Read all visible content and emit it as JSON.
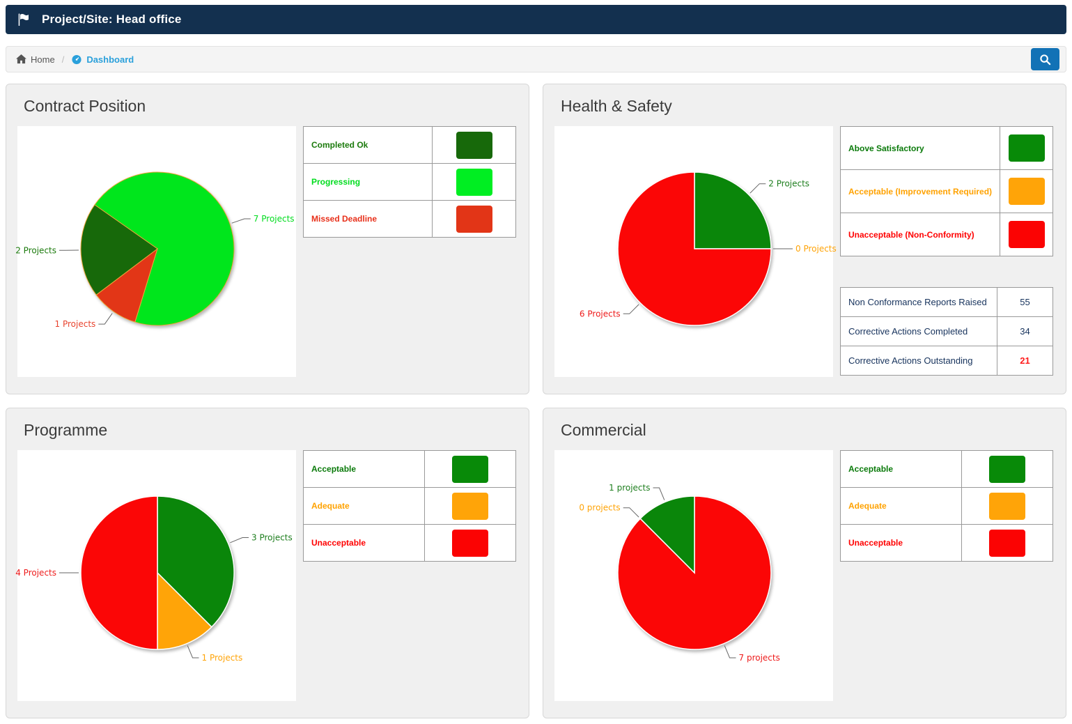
{
  "header": {
    "title": "Project/Site: Head office",
    "bg_color": "#13304F"
  },
  "breadcrumb": {
    "home_label": "Home",
    "separator": "/",
    "current_label": "Dashboard",
    "link_color": "#2AA0DB",
    "search_button_color": "#1272B6"
  },
  "panels": [
    {
      "title": "Contract Position",
      "legend": [
        {
          "label": "Completed Ok",
          "color": "#17690A",
          "text_color": "#1B7A0C"
        },
        {
          "label": "Progressing",
          "color": "#00EE22",
          "text_color": "#00DC1E"
        },
        {
          "label": "Missed Deadline",
          "color": "#E23517",
          "text_color": "#E8301A"
        }
      ],
      "chart": {
        "type": "pie",
        "start_angle": 305,
        "stroke": "#EFA63B",
        "stroke_width": 1,
        "slices": [
          {
            "label": "7 Projects",
            "value": 7,
            "color": "#00E61C",
            "text_color": "#00DC1E"
          },
          {
            "label": "1 Projects",
            "value": 1,
            "color": "#E23617",
            "text_color": "#E8432E"
          },
          {
            "label": "2 Projects",
            "value": 2,
            "color": "#17690A",
            "text_color": "#1B7A0C"
          }
        ]
      }
    },
    {
      "title": "Health & Safety",
      "legend": [
        {
          "label": "Above Satisfactory",
          "color": "#088A08",
          "text_color": "#0A7A0A"
        },
        {
          "label": "Acceptable (Improvement Required)",
          "color": "#FFA408",
          "text_color": "#FFA200"
        },
        {
          "label": "Unacceptable (Non-Conformity)",
          "color": "#FB0303",
          "text_color": "#FF0000"
        }
      ],
      "chart": {
        "type": "pie",
        "start_angle": 0,
        "stroke": "#FFFFFF",
        "stroke_width": 1.5,
        "slices": [
          {
            "label": "2 Projects",
            "value": 2,
            "color": "#0A860A",
            "text_color": "#1E7E1E"
          },
          {
            "label": "0 Projects",
            "value": 0,
            "color": "#FFA408",
            "text_color": "#FFA408"
          },
          {
            "label": "6 Projects",
            "value": 6,
            "color": "#FB0606",
            "text_color": "#EE1C1C"
          }
        ]
      },
      "stats": [
        {
          "label": "Non Conformance Reports Raised",
          "value": "55",
          "value_color": "#16325C"
        },
        {
          "label": "Corrective Actions Completed",
          "value": "34",
          "value_color": "#16325C"
        },
        {
          "label": "Corrective Actions Outstanding",
          "value": "21",
          "value_color": "#FF1A1A"
        }
      ]
    },
    {
      "title": "Programme",
      "legend": [
        {
          "label": "Acceptable",
          "color": "#088A08",
          "text_color": "#0A7A0A"
        },
        {
          "label": "Adequate",
          "color": "#FFA408",
          "text_color": "#FFA200"
        },
        {
          "label": "Unacceptable",
          "color": "#FB0303",
          "text_color": "#FF0000"
        }
      ],
      "chart": {
        "type": "pie",
        "start_angle": 0,
        "stroke": "#FFFFFF",
        "stroke_width": 1.5,
        "slices": [
          {
            "label": "3 Projects",
            "value": 3,
            "color": "#0A860A",
            "text_color": "#1E7E1E"
          },
          {
            "label": "1 Projects",
            "value": 1,
            "color": "#FFA408",
            "text_color": "#FFA408"
          },
          {
            "label": "4 Projects",
            "value": 4,
            "color": "#FB0606",
            "text_color": "#EE1C1C"
          }
        ]
      }
    },
    {
      "title": "Commercial",
      "legend": [
        {
          "label": "Acceptable",
          "color": "#088A08",
          "text_color": "#0A7A0A"
        },
        {
          "label": "Adequate",
          "color": "#FFA408",
          "text_color": "#FFA200"
        },
        {
          "label": "Unacceptable",
          "color": "#FB0303",
          "text_color": "#FF0000"
        }
      ],
      "chart": {
        "type": "pie",
        "start_angle": 0,
        "stroke": "#FFFFFF",
        "stroke_width": 1.5,
        "slices": [
          {
            "label": "7 projects",
            "value": 7,
            "color": "#FB0606",
            "text_color": "#EE1C1C"
          },
          {
            "label": "0 projects",
            "value": 0,
            "color": "#FFA408",
            "text_color": "#FFA408"
          },
          {
            "label": "1 projects",
            "value": 1,
            "color": "#0A860A",
            "text_color": "#1E7E1E"
          }
        ]
      }
    }
  ]
}
